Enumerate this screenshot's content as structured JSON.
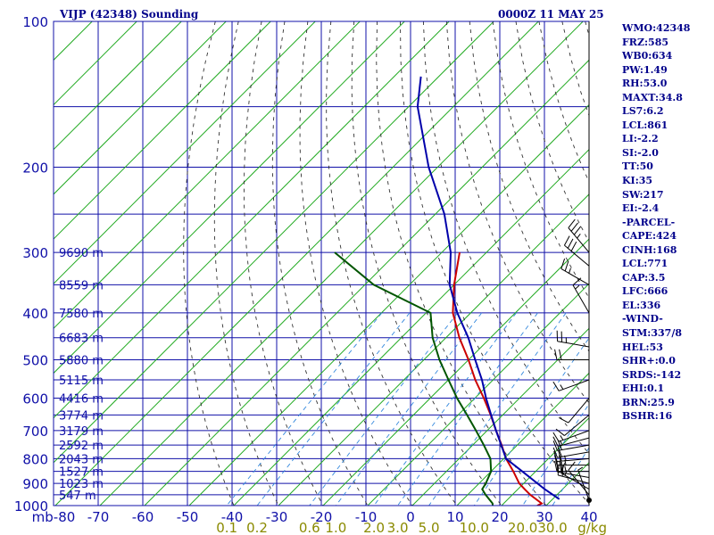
{
  "header": {
    "title": "VIJP (42348) Sounding",
    "datetime": "0000Z 11 MAY 25"
  },
  "stats": [
    "WMO:42348",
    "FRZ:585",
    "WB0:634",
    "PW:1.49",
    "RH:53.0",
    "MAXT:34.8",
    "LS7:6.2",
    "LCL:861",
    "LI:-2.2",
    "SI:-2.0",
    "TT:50",
    "KI:35",
    "SW:217",
    "EI:-2.4",
    "-PARCEL-",
    "CAPE:424",
    "CINH:168",
    "LCL:771",
    "CAP:3.5",
    "LFC:666",
    "EL:336",
    "-WIND-",
    "STM:337/8",
    "HEL:53",
    "SHR+:0.0",
    "SRDS:-142",
    "EHI:0.1",
    "BRN:25.9",
    "BSHR:16"
  ],
  "chart_data": {
    "type": "skew-t",
    "xlabel_unit": "mb",
    "pressure_ticks": [
      100,
      200,
      300,
      400,
      500,
      600,
      700,
      800,
      900,
      1000
    ],
    "temperature_ticks": [
      -80,
      -70,
      -60,
      -50,
      -40,
      -30,
      -20,
      -10,
      0,
      10,
      20,
      30,
      40
    ],
    "mixing_ratio_labels": [
      "0.1",
      "0.2",
      "0.6",
      "1.0",
      "2.0",
      "3.0",
      "5.0",
      "10.0",
      "20.0",
      "30.0"
    ],
    "mixing_ratio_unit": "g/kg",
    "height_labels": [
      {
        "p": 300,
        "label": "9690 m"
      },
      {
        "p": 350,
        "label": "8559 m"
      },
      {
        "p": 400,
        "label": "7580 m"
      },
      {
        "p": 450,
        "label": "6683 m"
      },
      {
        "p": 500,
        "label": "5880 m"
      },
      {
        "p": 550,
        "label": "5115 m"
      },
      {
        "p": 600,
        "label": "4416 m"
      },
      {
        "p": 650,
        "label": "3774 m"
      },
      {
        "p": 700,
        "label": "3179 m"
      },
      {
        "p": 750,
        "label": "2592 m"
      },
      {
        "p": 800,
        "label": "2043 m"
      },
      {
        "p": 850,
        "label": "1527 m"
      },
      {
        "p": 900,
        "label": "1023 m"
      },
      {
        "p": 950,
        "label": "547 m"
      }
    ],
    "series": [
      {
        "key": "temperature",
        "color": "#cc0000",
        "points": [
          [
            1000,
            28
          ],
          [
            990,
            28.5
          ],
          [
            950,
            24
          ],
          [
            925,
            21.5
          ],
          [
            900,
            19
          ],
          [
            850,
            15
          ],
          [
            800,
            10.5
          ],
          [
            750,
            6.5
          ],
          [
            700,
            2
          ],
          [
            650,
            -2.7
          ],
          [
            600,
            -8
          ],
          [
            550,
            -14
          ],
          [
            500,
            -20
          ],
          [
            450,
            -27
          ],
          [
            400,
            -34
          ],
          [
            350,
            -40
          ],
          [
            300,
            -46
          ]
        ]
      },
      {
        "key": "dewpoint",
        "color": "#005500",
        "points": [
          [
            1000,
            18
          ],
          [
            990,
            17.5
          ],
          [
            950,
            14
          ],
          [
            925,
            12
          ],
          [
            900,
            11.5
          ],
          [
            850,
            10
          ],
          [
            800,
            7
          ],
          [
            750,
            2.5
          ],
          [
            700,
            -2.5
          ],
          [
            650,
            -8
          ],
          [
            600,
            -14
          ],
          [
            550,
            -20
          ],
          [
            500,
            -26.5
          ],
          [
            450,
            -33
          ],
          [
            400,
            -39
          ],
          [
            350,
            -58
          ],
          [
            300,
            -74
          ]
        ]
      },
      {
        "key": "parcel",
        "color": "#0000aa",
        "points": [
          [
            970,
            31.5
          ],
          [
            925,
            26
          ],
          [
            850,
            17
          ],
          [
            800,
            10.5
          ],
          [
            750,
            6.4
          ],
          [
            700,
            2
          ],
          [
            650,
            -2.6
          ],
          [
            600,
            -7.5
          ],
          [
            550,
            -12.5
          ],
          [
            500,
            -18.5
          ],
          [
            450,
            -25
          ],
          [
            400,
            -33
          ],
          [
            350,
            -41
          ],
          [
            300,
            -48
          ],
          [
            250,
            -58
          ],
          [
            200,
            -72
          ],
          [
            150,
            -88
          ],
          [
            130,
            -94
          ]
        ]
      }
    ],
    "wind_barbs": [
      {
        "p": 975,
        "dir": 340,
        "spd": 5
      },
      {
        "p": 950,
        "dir": 320,
        "spd": 10
      },
      {
        "p": 925,
        "dir": 300,
        "spd": 15
      },
      {
        "p": 900,
        "dir": 285,
        "spd": 20
      },
      {
        "p": 875,
        "dir": 280,
        "spd": 20
      },
      {
        "p": 850,
        "dir": 270,
        "spd": 25
      },
      {
        "p": 825,
        "dir": 270,
        "spd": 25
      },
      {
        "p": 800,
        "dir": 265,
        "spd": 25
      },
      {
        "p": 775,
        "dir": 260,
        "spd": 20
      },
      {
        "p": 750,
        "dir": 260,
        "spd": 20
      },
      {
        "p": 725,
        "dir": 255,
        "spd": 15
      },
      {
        "p": 700,
        "dir": 250,
        "spd": 15
      },
      {
        "p": 650,
        "dir": 230,
        "spd": 10
      },
      {
        "p": 600,
        "dir": 220,
        "spd": 10
      },
      {
        "p": 550,
        "dir": 250,
        "spd": 15
      },
      {
        "p": 500,
        "dir": 270,
        "spd": 20
      },
      {
        "p": 470,
        "dir": 280,
        "spd": 25
      },
      {
        "p": 400,
        "dir": 330,
        "spd": 15
      },
      {
        "p": 350,
        "dir": 300,
        "spd": 25
      },
      {
        "p": 320,
        "dir": 310,
        "spd": 30
      },
      {
        "p": 300,
        "dir": 320,
        "spd": 35
      }
    ]
  }
}
